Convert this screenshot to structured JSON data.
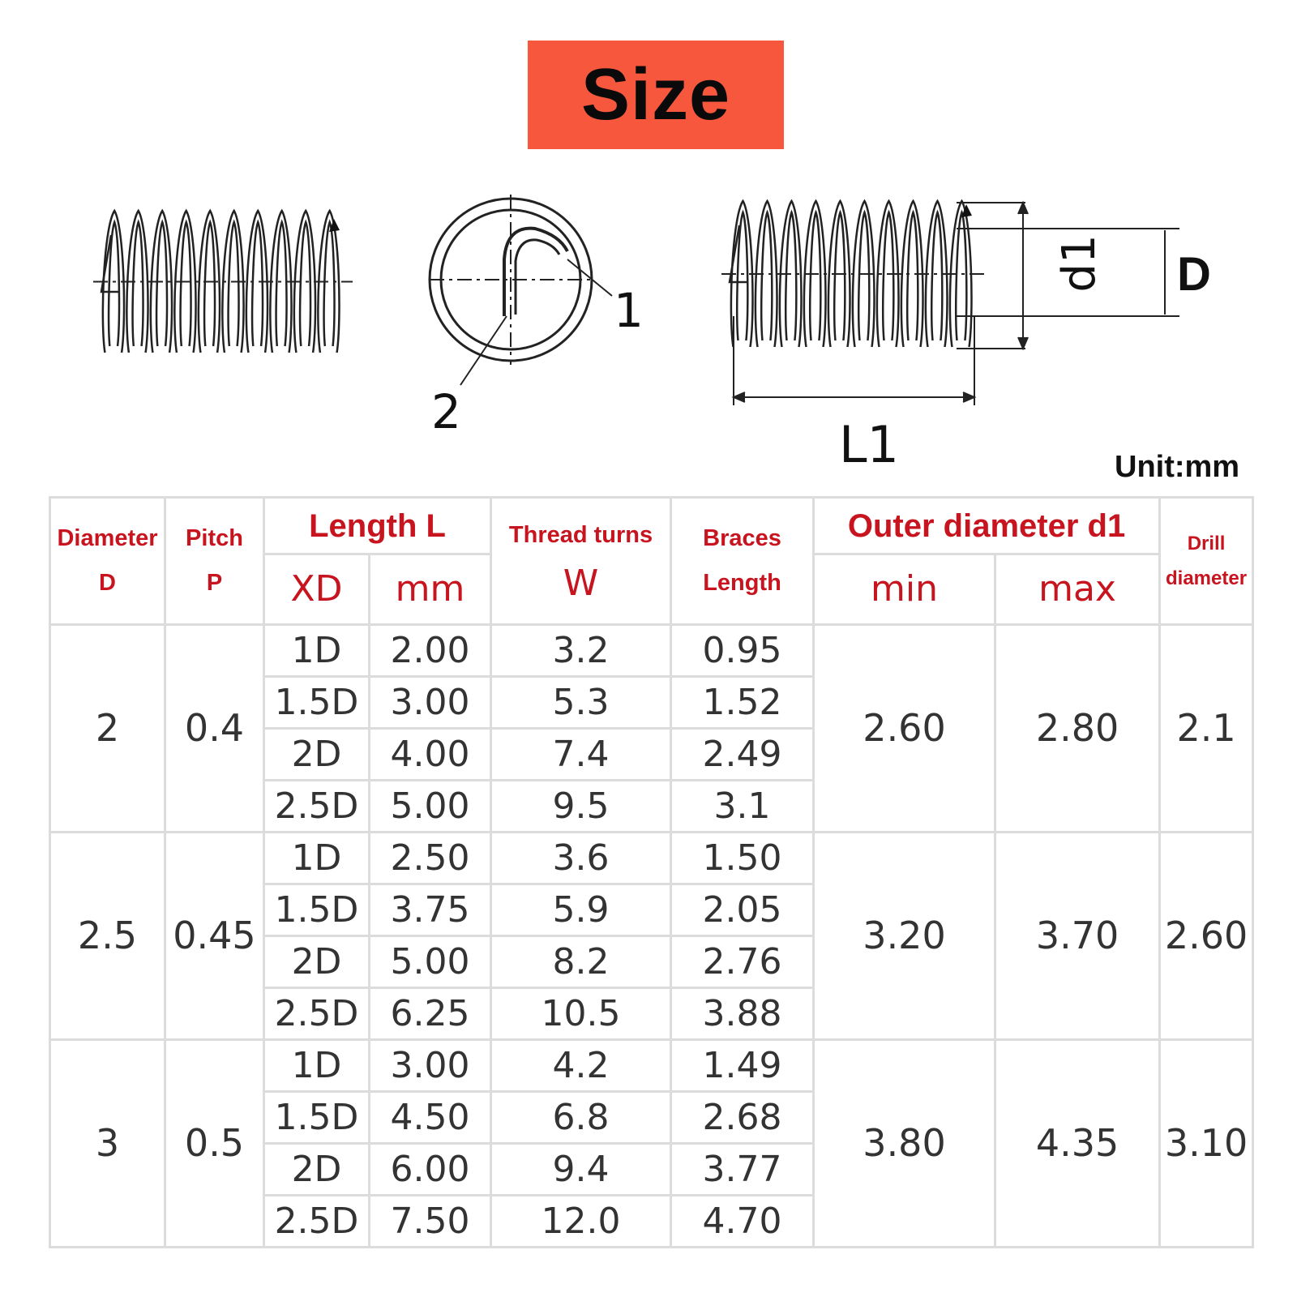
{
  "title": "Size",
  "diagram": {
    "label_1": "1",
    "label_2": "2",
    "label_d1": "d1",
    "label_D": "D",
    "label_L1": "L1"
  },
  "unit": "Unit:mm",
  "table": {
    "headers": {
      "diameter_line1": "Diameter",
      "diameter_line2": "D",
      "pitch_line1": "Pitch",
      "pitch_line2": "P",
      "length": "Length  L",
      "length_xd": "XD",
      "length_mm": "mm",
      "thread_turns_line1": "Thread turns",
      "thread_turns_line2": "W",
      "braces_line1": "Braces",
      "braces_line2": "Length",
      "outer": "Outer diameter  d1",
      "outer_min": "min",
      "outer_max": "max",
      "drill_line1": "Drill",
      "drill_line2": "diameter"
    },
    "groups": [
      {
        "diameter": "2",
        "pitch": "0.4",
        "outer_min": "2.60",
        "outer_max": "2.80",
        "drill": "2.1",
        "rows": [
          {
            "xd": "1D",
            "mm": "2.00",
            "turns": "3.2",
            "braces": "0.95"
          },
          {
            "xd": "1.5D",
            "mm": "3.00",
            "turns": "5.3",
            "braces": "1.52"
          },
          {
            "xd": "2D",
            "mm": "4.00",
            "turns": "7.4",
            "braces": "2.49"
          },
          {
            "xd": "2.5D",
            "mm": "5.00",
            "turns": "9.5",
            "braces": "3.1"
          }
        ]
      },
      {
        "diameter": "2.5",
        "pitch": "0.45",
        "outer_min": "3.20",
        "outer_max": "3.70",
        "drill": "2.60",
        "rows": [
          {
            "xd": "1D",
            "mm": "2.50",
            "turns": "3.6",
            "braces": "1.50"
          },
          {
            "xd": "1.5D",
            "mm": "3.75",
            "turns": "5.9",
            "braces": "2.05"
          },
          {
            "xd": "2D",
            "mm": "5.00",
            "turns": "8.2",
            "braces": "2.76"
          },
          {
            "xd": "2.5D",
            "mm": "6.25",
            "turns": "10.5",
            "braces": "3.88"
          }
        ]
      },
      {
        "diameter": "3",
        "pitch": "0.5",
        "outer_min": "3.80",
        "outer_max": "4.35",
        "drill": "3.10",
        "rows": [
          {
            "xd": "1D",
            "mm": "3.00",
            "turns": "4.2",
            "braces": "1.49"
          },
          {
            "xd": "1.5D",
            "mm": "4.50",
            "turns": "6.8",
            "braces": "2.68"
          },
          {
            "xd": "2D",
            "mm": "6.00",
            "turns": "9.4",
            "braces": "3.77"
          },
          {
            "xd": "2.5D",
            "mm": "7.50",
            "turns": "12.0",
            "braces": "4.70"
          }
        ]
      }
    ]
  }
}
